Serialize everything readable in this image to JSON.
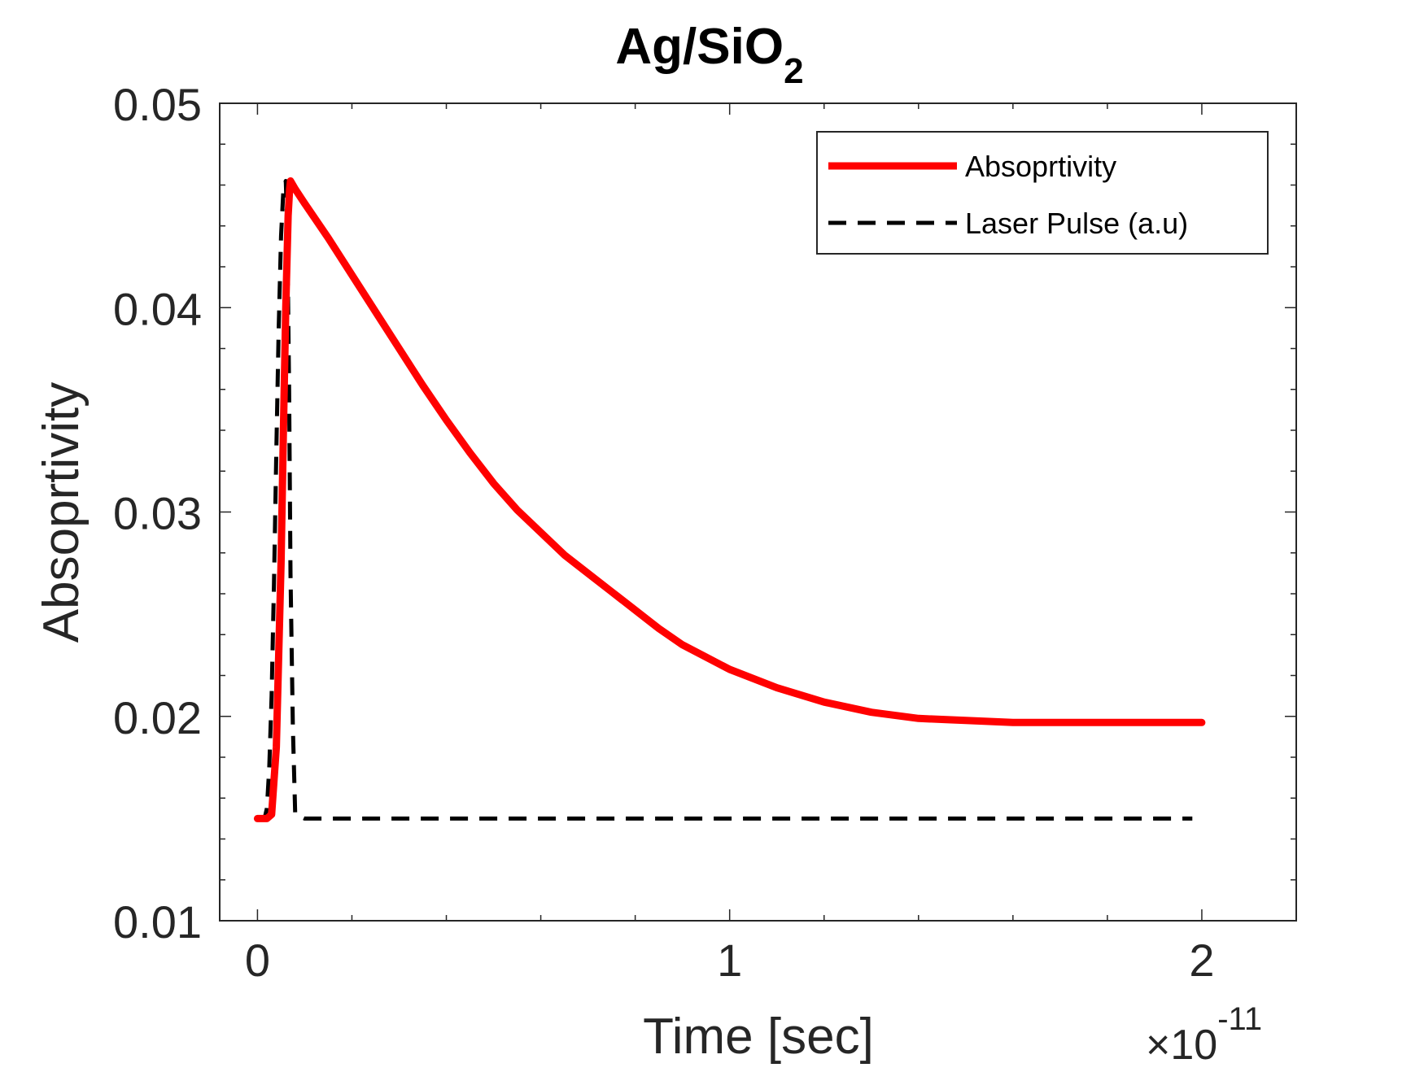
{
  "chart_data": {
    "type": "line",
    "title": {
      "main": "Ag/SiO",
      "subscript": "2"
    },
    "xlabel": "Time [sec]",
    "ylabel": "Absoprtivity",
    "xlim": [
      -0.08,
      2.2
    ],
    "ylim": [
      0.01,
      0.05
    ],
    "x_multiplier": {
      "symbol": "×",
      "base": "10",
      "exponent": "-11"
    },
    "x_ticks": [
      {
        "value": 0,
        "label": "0"
      },
      {
        "value": 1,
        "label": "1"
      },
      {
        "value": 2,
        "label": "2"
      }
    ],
    "y_ticks": [
      {
        "value": 0.01,
        "label": "0.01"
      },
      {
        "value": 0.02,
        "label": "0.02"
      },
      {
        "value": 0.03,
        "label": "0.03"
      },
      {
        "value": 0.04,
        "label": "0.04"
      },
      {
        "value": 0.05,
        "label": "0.05"
      }
    ],
    "x_minor_step": 0.2,
    "y_minor_step": 0.002,
    "grid": false,
    "legend_position": "top-right",
    "series": [
      {
        "name": "Absoprtivity",
        "color": "#ff0000",
        "style": "solid",
        "x": [
          0.0,
          0.02,
          0.03,
          0.04,
          0.05,
          0.055,
          0.06,
          0.065,
          0.068,
          0.07,
          0.08,
          0.1,
          0.15,
          0.2,
          0.25,
          0.3,
          0.35,
          0.4,
          0.45,
          0.5,
          0.55,
          0.6,
          0.65,
          0.7,
          0.75,
          0.8,
          0.85,
          0.9,
          0.95,
          1.0,
          1.1,
          1.2,
          1.3,
          1.4,
          1.5,
          1.6,
          1.7,
          1.8,
          1.9,
          2.0
        ],
        "y": [
          0.015,
          0.015,
          0.0152,
          0.0185,
          0.0275,
          0.034,
          0.04,
          0.0445,
          0.0458,
          0.0462,
          0.0458,
          0.0451,
          0.0434,
          0.0416,
          0.0398,
          0.038,
          0.0362,
          0.0345,
          0.0329,
          0.0314,
          0.0301,
          0.029,
          0.0279,
          0.027,
          0.0261,
          0.0252,
          0.0243,
          0.0235,
          0.0229,
          0.0223,
          0.0214,
          0.0207,
          0.0202,
          0.0199,
          0.0198,
          0.0197,
          0.0197,
          0.0197,
          0.0197,
          0.0197
        ]
      },
      {
        "name": "Laser Pulse (a.u)",
        "color": "#000000",
        "style": "dashed",
        "x": [
          0.0,
          0.015,
          0.02,
          0.025,
          0.03,
          0.035,
          0.04,
          0.045,
          0.05,
          0.055,
          0.06,
          0.063,
          0.067,
          0.07,
          0.075,
          0.08,
          0.1,
          0.5,
          1.0,
          1.5,
          1.98
        ],
        "y": [
          0.015,
          0.015,
          0.0155,
          0.0175,
          0.021,
          0.0265,
          0.033,
          0.039,
          0.0435,
          0.0458,
          0.0462,
          0.044,
          0.036,
          0.027,
          0.0195,
          0.0152,
          0.015,
          0.015,
          0.015,
          0.015,
          0.015
        ]
      }
    ]
  }
}
